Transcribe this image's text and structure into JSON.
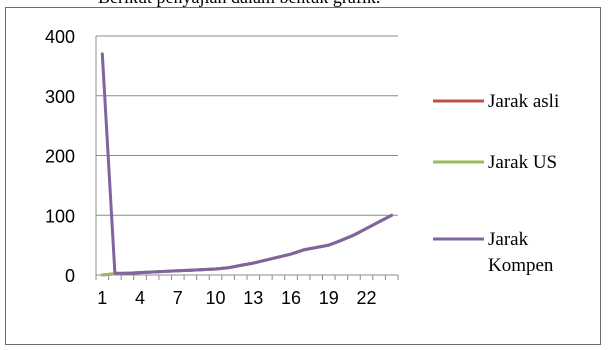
{
  "caption": "Berikut penyajian dalam bentuk grafik.",
  "chart_data": {
    "type": "line",
    "title": "",
    "xlabel": "",
    "ylabel": "",
    "ylim": [
      0,
      400
    ],
    "yticks": [
      0,
      100,
      200,
      300,
      400
    ],
    "x": [
      1,
      2,
      3,
      4,
      5,
      6,
      7,
      8,
      9,
      10,
      11,
      12,
      13,
      14,
      15,
      16,
      17,
      18,
      19,
      20,
      21,
      22,
      23,
      24
    ],
    "xtick_labels": [
      "1",
      "4",
      "7",
      "10",
      "13",
      "16",
      "19",
      "22"
    ],
    "xtick_positions": [
      1,
      4,
      7,
      10,
      13,
      16,
      19,
      22
    ],
    "grid": true,
    "legend_position": "right",
    "series": [
      {
        "name": "Jarak asli",
        "color": "#c0504d",
        "values": [
          0,
          2,
          3,
          4,
          5,
          6,
          7,
          8,
          9,
          10,
          12,
          16,
          20,
          25,
          30,
          35,
          42,
          46,
          50,
          58,
          67,
          78,
          89,
          100
        ]
      },
      {
        "name": "Jarak US",
        "color": "#9bbb59",
        "values": [
          0,
          2,
          3,
          4,
          5,
          6,
          7,
          8,
          9,
          10,
          12,
          16,
          20,
          25,
          30,
          35,
          42,
          46,
          50,
          58,
          67,
          78,
          89,
          100
        ]
      },
      {
        "name": "Jarak Kompen",
        "color": "#8064a2",
        "values": [
          370,
          3,
          3,
          4,
          5,
          6,
          7,
          8,
          9,
          10,
          12,
          16,
          20,
          25,
          30,
          35,
          42,
          46,
          50,
          58,
          67,
          78,
          89,
          100
        ]
      }
    ]
  }
}
